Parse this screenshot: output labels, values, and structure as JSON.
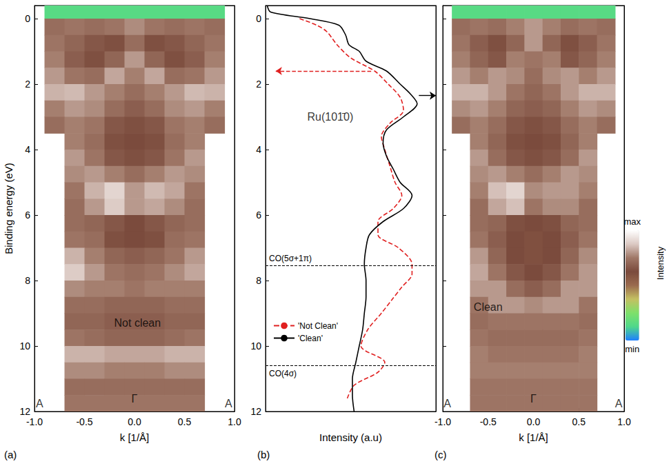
{
  "chart_data": [
    {
      "type": "heatmap",
      "panel": "(a)",
      "xlabel": "k [1/Å]",
      "ylabel": "Binding energy (eV)",
      "xlim": [
        -1,
        1
      ],
      "xticks": [
        {
          "value": -1,
          "label": "-1.0"
        },
        {
          "value": -0.5,
          "label": "-0.5"
        },
        {
          "value": 0,
          "label": "0.0"
        },
        {
          "value": 0.5,
          "label": "0.5"
        },
        {
          "value": 1,
          "label": "1.0"
        }
      ],
      "ylim": [
        -0.4,
        12
      ],
      "yticks": [
        0,
        2,
        4,
        6,
        8,
        10,
        12
      ],
      "x": [
        -0.8,
        -0.6,
        -0.4,
        -0.2,
        0,
        0.2,
        0.4,
        0.6,
        0.8
      ],
      "y": [
        -0.25,
        0.25,
        0.75,
        1.25,
        1.75,
        2.25,
        2.75,
        3.25,
        3.75,
        4.25,
        4.75,
        5.25,
        5.75,
        6.25,
        6.75,
        7.25,
        7.75,
        8.25,
        8.75,
        9.25,
        9.75,
        10.25,
        10.75,
        11.25,
        11.75
      ],
      "z": [
        [
          0.15,
          0.15,
          0.15,
          0.15,
          0.15,
          0.15,
          0.15,
          0.15,
          0.15
        ],
        [
          0.72,
          0.74,
          0.72,
          0.74,
          0.78,
          0.74,
          0.72,
          0.74,
          0.72
        ],
        [
          0.74,
          0.7,
          0.66,
          0.64,
          0.72,
          0.64,
          0.66,
          0.7,
          0.74
        ],
        [
          0.76,
          0.68,
          0.64,
          0.7,
          0.8,
          0.7,
          0.64,
          0.68,
          0.76
        ],
        [
          0.8,
          0.74,
          0.72,
          0.82,
          0.76,
          0.82,
          0.72,
          0.74,
          0.8
        ],
        [
          0.84,
          0.85,
          0.8,
          0.76,
          0.72,
          0.76,
          0.8,
          0.85,
          0.84
        ],
        [
          0.76,
          0.8,
          0.78,
          0.72,
          0.68,
          0.72,
          0.78,
          0.8,
          0.76
        ],
        [
          0.72,
          0.76,
          0.74,
          0.66,
          0.64,
          0.66,
          0.74,
          0.76,
          0.72
        ],
        [
          null,
          0.76,
          0.72,
          0.64,
          0.62,
          0.64,
          0.72,
          0.76,
          null
        ],
        [
          null,
          0.8,
          0.74,
          0.66,
          0.64,
          0.66,
          0.74,
          0.8,
          null
        ],
        [
          null,
          0.78,
          0.8,
          0.76,
          0.72,
          0.76,
          0.8,
          0.78,
          null
        ],
        [
          null,
          0.74,
          0.84,
          0.9,
          0.8,
          0.85,
          0.82,
          0.74,
          null
        ],
        [
          null,
          0.72,
          0.8,
          0.88,
          0.8,
          0.82,
          0.78,
          0.72,
          null
        ],
        [
          null,
          0.72,
          0.7,
          0.66,
          0.62,
          0.66,
          0.7,
          0.72,
          null
        ],
        [
          null,
          0.74,
          0.72,
          0.64,
          0.62,
          0.64,
          0.72,
          0.74,
          null
        ],
        [
          null,
          0.84,
          0.76,
          0.7,
          0.68,
          0.7,
          0.74,
          0.8,
          null
        ],
        [
          null,
          0.88,
          0.8,
          0.74,
          0.72,
          0.74,
          0.78,
          0.82,
          null
        ],
        [
          null,
          0.78,
          0.76,
          0.76,
          0.74,
          0.76,
          0.76,
          0.76,
          null
        ],
        [
          null,
          0.72,
          0.72,
          0.7,
          0.7,
          0.7,
          0.72,
          0.72,
          null
        ],
        [
          null,
          0.7,
          0.7,
          0.68,
          0.68,
          0.68,
          0.7,
          0.7,
          null
        ],
        [
          null,
          0.74,
          0.72,
          0.7,
          0.7,
          0.7,
          0.72,
          0.74,
          null
        ],
        [
          null,
          0.84,
          0.84,
          0.82,
          0.82,
          0.82,
          0.84,
          0.84,
          null
        ],
        [
          null,
          0.78,
          0.78,
          0.76,
          0.76,
          0.76,
          0.78,
          0.78,
          null
        ],
        [
          null,
          0.72,
          0.72,
          0.72,
          0.72,
          0.72,
          0.72,
          0.72,
          null
        ],
        [
          null,
          0.74,
          0.74,
          0.74,
          0.74,
          0.74,
          0.74,
          0.74,
          null
        ]
      ],
      "annotations": [
        {
          "text": "Not clean",
          "x": 0.03,
          "y": 9.3
        },
        {
          "text": "Γ",
          "x": 0,
          "y": 11.6
        },
        {
          "text": "A",
          "x": -0.95,
          "y": 11.75
        },
        {
          "text": "A",
          "x": 0.94,
          "y": 11.75
        }
      ]
    },
    {
      "type": "line",
      "panel": "(b)",
      "xlabel": "Intensity (a.u)",
      "xlim": [
        0,
        1
      ],
      "ylim": [
        -0.4,
        12
      ],
      "yticks": [
        0,
        2,
        4,
        6,
        8,
        10,
        12
      ],
      "tick_labels": "y",
      "legend": "lower left",
      "series": [
        {
          "name": "'Not Clean'",
          "color": "#e02020",
          "line_style": "dashed",
          "y": [
            0.0,
            0.2,
            0.4,
            0.8,
            1.2,
            1.6,
            2.0,
            2.4,
            2.8,
            3.2,
            3.6,
            4.0,
            4.5,
            5.0,
            5.4,
            5.8,
            6.2,
            6.6,
            7.0,
            7.5,
            7.8,
            8.2,
            8.6,
            9.0,
            9.5,
            10.0,
            10.5,
            10.8,
            11.2,
            11.6
          ],
          "x": [
            0.2,
            0.3,
            0.36,
            0.42,
            0.5,
            0.64,
            0.72,
            0.79,
            0.81,
            0.73,
            0.68,
            0.7,
            0.73,
            0.76,
            0.8,
            0.75,
            0.66,
            0.66,
            0.78,
            0.86,
            0.86,
            0.8,
            0.74,
            0.68,
            0.6,
            0.56,
            0.7,
            0.66,
            0.52,
            0.48
          ]
        },
        {
          "name": "'Clean'",
          "color": "#000000",
          "line_style": "solid",
          "y": [
            -0.4,
            -0.2,
            0,
            0.2,
            0.5,
            0.8,
            1.0,
            1.3,
            1.6,
            2.0,
            2.3,
            2.6,
            3.0,
            3.4,
            3.8,
            4.2,
            4.6,
            5.0,
            5.4,
            5.8,
            6.2,
            6.6,
            7.0,
            7.5,
            8.0,
            8.5,
            9.0,
            9.5,
            10.0,
            10.5,
            11.0,
            11.5,
            12.0
          ],
          "x": [
            0.01,
            0.03,
            0.26,
            0.43,
            0.47,
            0.49,
            0.55,
            0.59,
            0.71,
            0.79,
            0.85,
            0.89,
            0.81,
            0.71,
            0.69,
            0.71,
            0.75,
            0.79,
            0.86,
            0.81,
            0.69,
            0.61,
            0.59,
            0.58,
            0.59,
            0.59,
            0.58,
            0.57,
            0.55,
            0.53,
            0.51,
            0.51,
            0.52
          ]
        }
      ],
      "annotations": [
        {
          "text": "Ru(101̄0)",
          "x": 0.38,
          "y": 3.0
        },
        {
          "text": "CO(5σ+1π)",
          "y": 7.55,
          "line_style": "dashed"
        },
        {
          "text": "CO(4σ)",
          "y": 10.6,
          "line_style": "dashed"
        }
      ],
      "arrows": [
        {
          "x": [
            0.62,
            0.06
          ],
          "y": 1.6,
          "color": "#e02020",
          "line_style": "dashed"
        },
        {
          "x": [
            0.9,
            1.0
          ],
          "y": 2.35,
          "color": "#000000",
          "line_style": "solid"
        }
      ]
    },
    {
      "type": "heatmap",
      "panel": "(c)",
      "xlabel": "k [1/Å]",
      "xlim": [
        -1,
        1
      ],
      "xticks": [
        {
          "value": -1,
          "label": "-1.0"
        },
        {
          "value": -0.5,
          "label": "-0.5"
        },
        {
          "value": 0,
          "label": "0.0"
        },
        {
          "value": 0.5,
          "label": "0.5"
        },
        {
          "value": 1,
          "label": "1.0"
        }
      ],
      "ylim": [
        -0.4,
        12
      ],
      "yticks": [
        0,
        2,
        4,
        6,
        8,
        10,
        12
      ],
      "tick_labels": "x",
      "x": [
        -0.8,
        -0.6,
        -0.4,
        -0.2,
        0,
        0.2,
        0.4,
        0.6,
        0.8
      ],
      "y": [
        -0.25,
        0.25,
        0.75,
        1.25,
        1.75,
        2.25,
        2.75,
        3.25,
        3.75,
        4.25,
        4.75,
        5.25,
        5.75,
        6.25,
        6.75,
        7.25,
        7.75,
        8.25,
        8.75,
        9.25,
        9.75,
        10.25,
        10.75,
        11.25,
        11.75
      ],
      "z": [
        [
          0.15,
          0.15,
          0.15,
          0.15,
          0.15,
          0.15,
          0.15,
          0.15,
          0.15
        ],
        [
          0.72,
          0.74,
          0.72,
          0.76,
          0.8,
          0.76,
          0.72,
          0.74,
          0.72
        ],
        [
          0.74,
          0.68,
          0.64,
          0.7,
          0.8,
          0.7,
          0.64,
          0.68,
          0.74
        ],
        [
          0.76,
          0.7,
          0.66,
          0.76,
          0.74,
          0.76,
          0.66,
          0.7,
          0.76
        ],
        [
          0.8,
          0.76,
          0.8,
          0.78,
          0.72,
          0.78,
          0.8,
          0.76,
          0.8
        ],
        [
          0.84,
          0.84,
          0.8,
          0.74,
          0.7,
          0.74,
          0.8,
          0.84,
          0.84
        ],
        [
          0.78,
          0.8,
          0.76,
          0.7,
          0.68,
          0.7,
          0.76,
          0.8,
          0.78
        ],
        [
          0.72,
          0.76,
          0.72,
          0.66,
          0.64,
          0.66,
          0.72,
          0.76,
          0.72
        ],
        [
          null,
          0.76,
          0.7,
          0.64,
          0.62,
          0.64,
          0.7,
          0.76,
          null
        ],
        [
          null,
          0.8,
          0.72,
          0.66,
          0.64,
          0.66,
          0.72,
          0.8,
          null
        ],
        [
          null,
          0.78,
          0.8,
          0.76,
          0.72,
          0.76,
          0.8,
          0.78,
          null
        ],
        [
          null,
          0.76,
          0.86,
          0.9,
          0.78,
          0.8,
          0.8,
          0.76,
          null
        ],
        [
          null,
          0.72,
          0.82,
          0.86,
          0.74,
          0.78,
          0.78,
          0.72,
          null
        ],
        [
          null,
          0.72,
          0.7,
          0.64,
          0.62,
          0.64,
          0.7,
          0.72,
          null
        ],
        [
          null,
          0.74,
          0.68,
          0.62,
          0.6,
          0.62,
          0.68,
          0.74,
          null
        ],
        [
          null,
          0.8,
          0.7,
          0.62,
          0.6,
          0.62,
          0.7,
          0.78,
          null
        ],
        [
          null,
          0.82,
          0.74,
          0.66,
          0.62,
          0.66,
          0.74,
          0.8,
          null
        ],
        [
          null,
          0.8,
          0.8,
          0.72,
          0.68,
          0.72,
          0.8,
          0.8,
          null
        ],
        [
          null,
          0.74,
          0.8,
          0.8,
          0.78,
          0.8,
          0.8,
          0.74,
          null
        ],
        [
          null,
          0.72,
          0.74,
          0.74,
          0.74,
          0.74,
          0.74,
          0.72,
          null
        ],
        [
          null,
          0.74,
          0.72,
          0.72,
          0.72,
          0.72,
          0.72,
          0.74,
          null
        ],
        [
          null,
          0.76,
          0.74,
          0.74,
          0.74,
          0.74,
          0.74,
          0.76,
          null
        ],
        [
          null,
          0.76,
          0.76,
          0.76,
          0.76,
          0.76,
          0.76,
          0.76,
          null
        ],
        [
          null,
          0.74,
          0.74,
          0.74,
          0.74,
          0.74,
          0.74,
          0.74,
          null
        ],
        [
          null,
          0.74,
          0.74,
          0.74,
          0.74,
          0.74,
          0.74,
          0.74,
          null
        ]
      ],
      "annotations": [
        {
          "text": "Clean",
          "x": -0.5,
          "y": 8.8
        },
        {
          "text": "Γ",
          "x": 0,
          "y": 11.6
        },
        {
          "text": "A",
          "x": -0.95,
          "y": 11.75
        },
        {
          "text": "A",
          "x": 0.94,
          "y": 11.75
        }
      ],
      "colorbar": {
        "title": "Intensity",
        "range": [
          0,
          1
        ],
        "ticks": [
          {
            "value": 0,
            "label": "min"
          },
          {
            "value": 1,
            "label": "max"
          }
        ],
        "colors": [
          "#1e7fff",
          "#4fd88a",
          "#7ee06a",
          "#c4c062",
          "#9a6a4e",
          "#7a4a3c",
          "#a07868",
          "#dccac4",
          "#ffffff"
        ]
      }
    }
  ]
}
